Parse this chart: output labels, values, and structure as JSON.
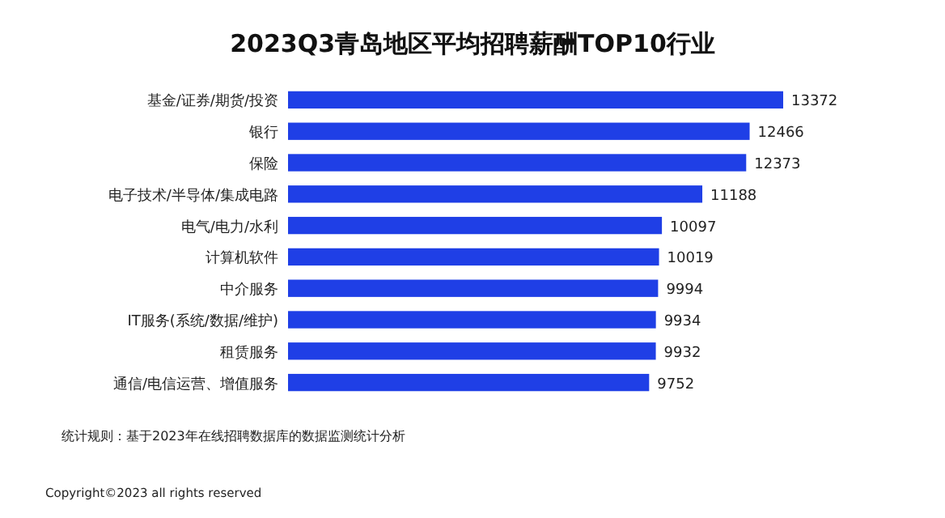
{
  "chart_data": {
    "type": "bar",
    "orientation": "horizontal",
    "title": "2023Q3青岛地区平均招聘薪酬TOP10行业",
    "categories": [
      "基金/证券/期货/投资",
      "银行",
      "保险",
      "电子技术/半导体/集成电路",
      "电气/电力/水利",
      "计算机软件",
      "中介服务",
      "IT服务(系统/数据/维护)",
      "租赁服务",
      "通信/电信运营、增值服务"
    ],
    "values": [
      13372,
      12466,
      12373,
      11188,
      10097,
      10019,
      9994,
      9934,
      9932,
      9752
    ],
    "color": "#1f3fe6",
    "data_labels": true,
    "annotations": [
      "统计规则：基于2023年在线招聘数据库的数据监测统计分析",
      "Copyright©2023 all rights reserved"
    ]
  }
}
